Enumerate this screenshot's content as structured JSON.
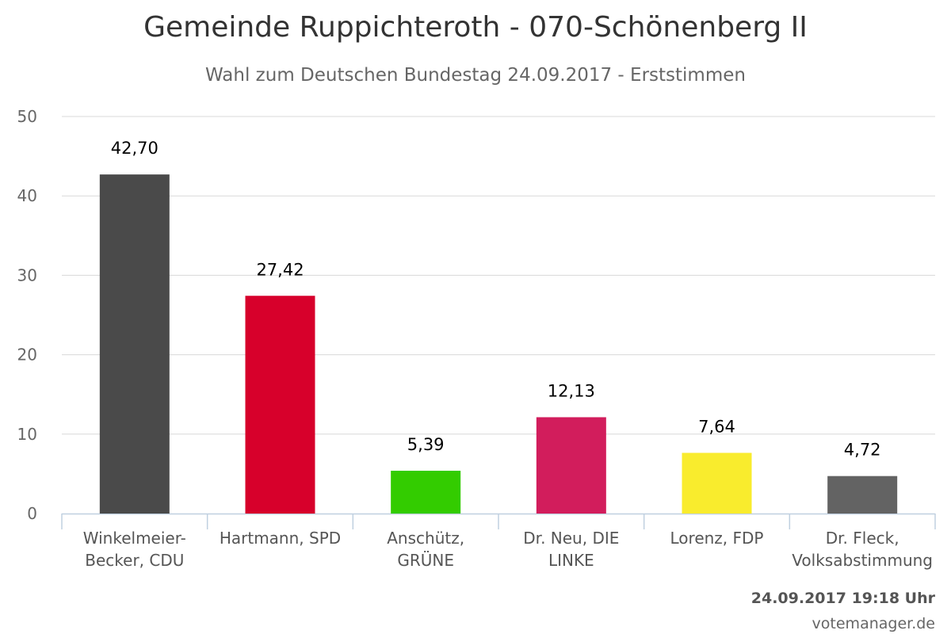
{
  "chart_data": {
    "type": "bar",
    "title": "Gemeinde Ruppichteroth - 070-Schönenberg II",
    "subtitle": "Wahl zum Deutschen Bundestag 24.09.2017 - Erststimmen",
    "categories": [
      [
        "Winkelmeier-",
        "Becker, CDU"
      ],
      [
        "Hartmann, SPD"
      ],
      [
        "Anschütz,",
        "GRÜNE"
      ],
      [
        "Dr. Neu, DIE",
        "LINKE"
      ],
      [
        "Lorenz, FDP"
      ],
      [
        "Dr. Fleck,",
        "Volksabstimmung"
      ]
    ],
    "values": [
      42.7,
      27.42,
      5.39,
      12.13,
      7.64,
      4.72
    ],
    "value_labels": [
      "42,70",
      "27,42",
      "5,39",
      "12,13",
      "7,64",
      "4,72"
    ],
    "colors": [
      "#4a4a4a",
      "#d7002b",
      "#33cc00",
      "#d21d5c",
      "#f9ec2d",
      "#636363"
    ],
    "ylim": [
      0,
      50
    ],
    "yticks": [
      0,
      10,
      20,
      30,
      40,
      50
    ],
    "grid": true,
    "legend": "none"
  },
  "footer": {
    "timestamp": "24.09.2017 19:18 Uhr",
    "credit": "votemanager.de"
  }
}
